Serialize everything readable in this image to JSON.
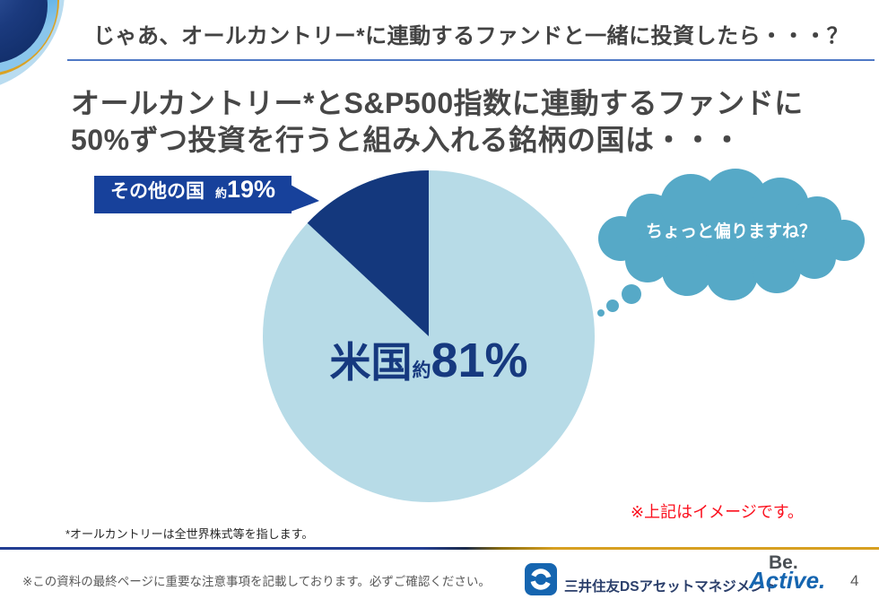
{
  "slide": {
    "header": {
      "title": "じゃあ、オールカントリー*に連動するファンドと一緒に投資したら・・・？"
    },
    "heading": {
      "line1": "オールカントリー*とS&P500指数に連動するファンドに",
      "line2": "50%ずつ投資を行うと組み入れる銘柄の国は・・・"
    },
    "callout": {
      "label": "その他の国",
      "prefix": "約",
      "value": "19%"
    },
    "pie_center_label": {
      "label": "米国",
      "prefix": "約",
      "value": "81%"
    },
    "thought_bubble": {
      "text": "ちょっと偏りますね？"
    },
    "image_note": "※上記はイメージです。",
    "footnote": "*オールカントリーは全世界株式等を指します。",
    "footer": {
      "disclaimer": "※この資料の最終ページに重要な注意事項を記載しております。必ずご確認ください。",
      "company_logo": "三井住友DSアセットマネジメント",
      "brand_line1": "Be.",
      "brand_line2": "Active.",
      "page_number": "4"
    },
    "colors": {
      "accent_navy": "#14387d",
      "callout_blue": "#17419b",
      "pie_light_blue": "#b7dbe7",
      "bubble_teal": "#56a9c7",
      "note_red": "#fb0f1d",
      "divider_blue": "#233e93",
      "divider_gold": "#d7a021",
      "header_rule_blue": "#4f79c5",
      "brand_blue": "#1565b0"
    }
  },
  "chart_data": {
    "type": "pie",
    "title": "オールカントリー*とS&P500指数に連動するファンドに50%ずつ投資を行うと組み入れる銘柄の国",
    "slices": [
      {
        "label": "米国",
        "value_pct": 81,
        "value_label": "約81%",
        "color": "#b7dbe7"
      },
      {
        "label": "その他の国",
        "value_pct": 19,
        "value_label": "約19%",
        "color": "#14387d"
      }
    ],
    "start_angle_deg": 0,
    "depicted_other_slice_sweep_deg": 47,
    "legend_position": "labels-on-chart",
    "note": "※上記はイメージです。"
  }
}
